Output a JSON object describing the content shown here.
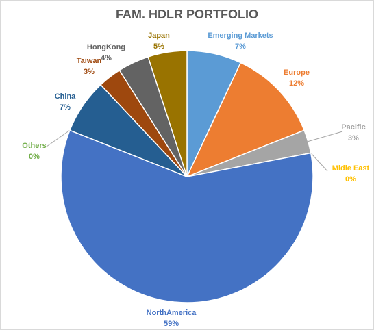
{
  "chart_data": {
    "type": "pie",
    "title": "FAM. HDLR PORTFOLIO",
    "categories": [
      "Emerging Markets",
      "Europe",
      "Pacific",
      "Midle East",
      "NorthAmerica",
      "Others",
      "China",
      "Taiwan",
      "HongKong",
      "Japan"
    ],
    "values": [
      7,
      12,
      3,
      0,
      59,
      0,
      7,
      3,
      4,
      5
    ],
    "value_labels": [
      "7%",
      "12%",
      "3%",
      "0%",
      "59%",
      "0%",
      "7%",
      "3%",
      "4%",
      "5%"
    ],
    "colors": [
      "#5b9bd5",
      "#ed7d31",
      "#a5a5a5",
      "#ffc000",
      "#4472c4",
      "#70ad47",
      "#255e91",
      "#9e480e",
      "#636363",
      "#997300"
    ]
  }
}
